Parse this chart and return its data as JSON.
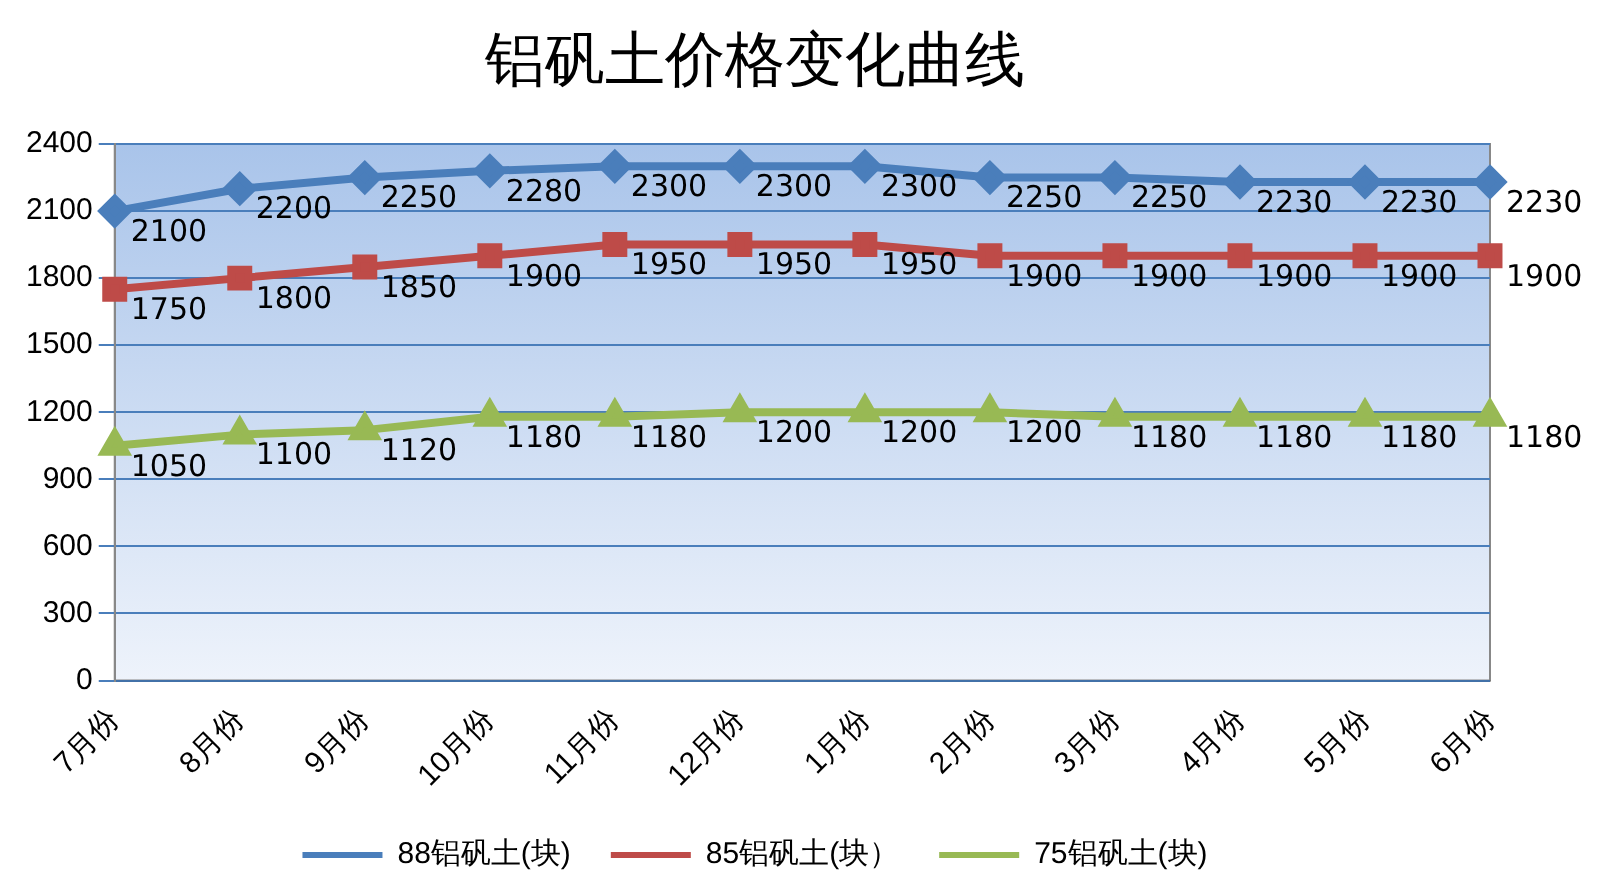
{
  "chart_data": {
    "type": "line",
    "title": "铝矾土价格变化曲线",
    "categories": [
      "7月份",
      "8月份",
      "9月份",
      "10月份",
      "11月份",
      "12月份",
      "1月份",
      "2月份",
      "3月份",
      "4月份",
      "5月份",
      "6月份"
    ],
    "series": [
      {
        "name": "88铝矾土(块)",
        "color": "#4a7ebb",
        "marker": "diamond",
        "values": [
          2100,
          2200,
          2250,
          2280,
          2300,
          2300,
          2300,
          2250,
          2250,
          2230,
          2230,
          2230
        ]
      },
      {
        "name": "85铝矾土(块）",
        "color": "#be4b48",
        "marker": "square",
        "values": [
          1750,
          1800,
          1850,
          1900,
          1950,
          1950,
          1950,
          1900,
          1900,
          1900,
          1900,
          1900
        ]
      },
      {
        "name": "75铝矾土(块)",
        "color": "#98b954",
        "marker": "triangle",
        "values": [
          1050,
          1100,
          1120,
          1180,
          1180,
          1200,
          1200,
          1200,
          1180,
          1180,
          1180,
          1180
        ]
      }
    ],
    "ylim": [
      0,
      2400
    ],
    "yticks": [
      0,
      300,
      600,
      900,
      1200,
      1500,
      1800,
      2100,
      2400
    ],
    "grid": "y",
    "legend": "bottom",
    "data_labels": true
  }
}
